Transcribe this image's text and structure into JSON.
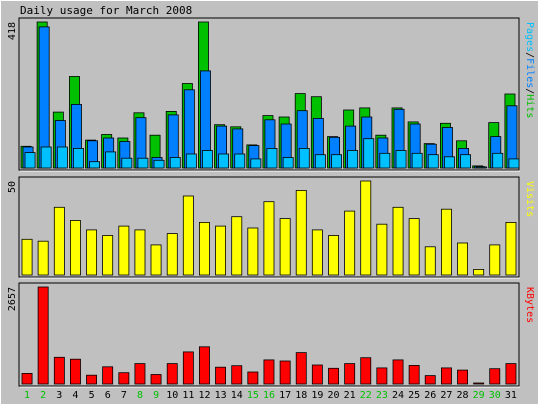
{
  "chart_data": {
    "type": "bar",
    "title": "Daily usage for March 2008",
    "categories": [
      "1",
      "2",
      "3",
      "4",
      "5",
      "6",
      "7",
      "8",
      "9",
      "10",
      "11",
      "12",
      "13",
      "14",
      "15",
      "16",
      "17",
      "18",
      "19",
      "20",
      "21",
      "22",
      "23",
      "24",
      "25",
      "26",
      "27",
      "28",
      "29",
      "30",
      "31"
    ],
    "weekend_days": [
      "1",
      "2",
      "8",
      "9",
      "15",
      "16",
      "22",
      "23",
      "29",
      "30"
    ],
    "panels": [
      {
        "id": "hits",
        "ymax": 418,
        "ymax_label": "418",
        "series": [
          {
            "name": "Hits",
            "color": "#00c000",
            "values": [
              62,
              418,
              160,
              262,
              80,
              96,
              86,
              158,
              94,
              162,
              242,
              418,
              124,
              118,
              66,
              150,
              146,
              213,
              204,
              90,
              166,
              172,
              94,
              172,
              132,
              70,
              128,
              78,
              6,
              130,
              212
            ]
          },
          {
            "name": "Files",
            "color": "#0080ff",
            "values": [
              60,
              404,
              136,
              182,
              78,
              86,
              76,
              144,
              30,
              152,
              224,
              278,
              120,
              112,
              64,
              138,
              126,
              164,
              142,
              88,
              120,
              146,
              86,
              168,
              126,
              68,
              116,
              56,
              4,
              90,
              178
            ]
          },
          {
            "name": "Pages",
            "color": "#00c0ff",
            "values": [
              44,
              60,
              60,
              56,
              18,
              46,
              28,
              28,
              22,
              30,
              40,
              50,
              40,
              40,
              26,
              56,
              30,
              56,
              38,
              38,
              50,
              84,
              42,
              50,
              42,
              38,
              32,
              38,
              2,
              42,
              26
            ]
          }
        ],
        "right_label": [
          {
            "text": "Pages",
            "color": "#00c0ff"
          },
          {
            "text": "/",
            "color": "#000000"
          },
          {
            "text": "Files",
            "color": "#0080ff"
          },
          {
            "text": "/",
            "color": "#000000"
          },
          {
            "text": "Hits",
            "color": "#00c000"
          }
        ]
      },
      {
        "id": "visits",
        "ymax": 50,
        "ymax_label": "50",
        "series": [
          {
            "name": "Visits",
            "color": "#ffff00",
            "values": [
              19,
              18,
              36,
              29,
              24,
              21,
              26,
              24,
              16,
              22,
              42,
              28,
              26,
              31,
              25,
              39,
              30,
              45,
              24,
              21,
              34,
              50,
              27,
              36,
              30,
              15,
              35,
              17,
              3,
              16,
              28
            ]
          }
        ],
        "right_label": [
          {
            "text": "Visits",
            "color": "#ffff00"
          }
        ]
      },
      {
        "id": "kbytes",
        "ymax": 2657,
        "ymax_label": "2657",
        "series": [
          {
            "name": "KBytes",
            "color": "#ff0000",
            "values": [
              290,
              2657,
              730,
              680,
              240,
              470,
              310,
              560,
              260,
              560,
              880,
              1020,
              460,
              500,
              330,
              660,
              630,
              860,
              520,
              430,
              560,
              720,
              440,
              660,
              510,
              230,
              440,
              380,
              18,
              420,
              560
            ]
          }
        ],
        "right_label": [
          {
            "text": "KBytes",
            "color": "#ff0000"
          }
        ]
      }
    ]
  },
  "colors": {
    "background": "#c0c0c0",
    "weekday_tick": "#000000",
    "weekend_tick": "#00c000"
  }
}
